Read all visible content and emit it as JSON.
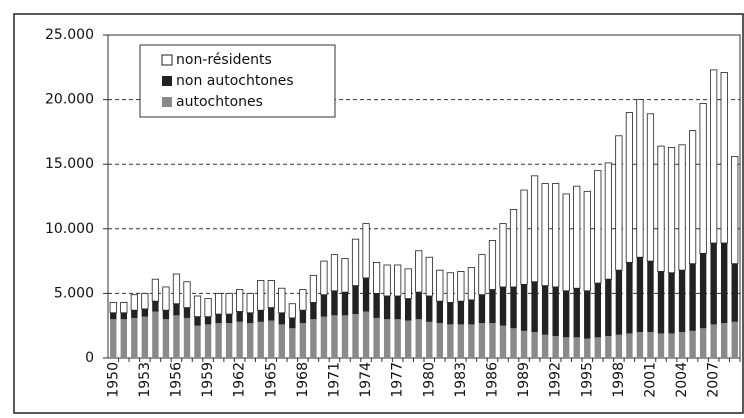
{
  "chart_data": {
    "type": "stacked_bar",
    "categories": [
      "1950",
      null,
      null,
      "1953",
      null,
      null,
      "1956",
      null,
      null,
      "1959",
      null,
      null,
      "1962",
      null,
      null,
      "1965",
      null,
      null,
      "1968",
      null,
      null,
      "1971",
      null,
      null,
      "1974",
      null,
      null,
      "1977",
      null,
      null,
      "1980",
      null,
      null,
      "1983",
      null,
      null,
      "1986",
      null,
      null,
      "1989",
      null,
      null,
      "1992",
      null,
      null,
      "1995",
      null,
      null,
      "1998",
      null,
      null,
      "2001",
      null,
      null,
      "2004",
      null,
      null,
      "2007",
      null,
      null
    ],
    "series": [
      {
        "name": "non-résidents",
        "color": "#ffffff",
        "values": [
          800,
          800,
          1200,
          1200,
          1700,
          1800,
          2300,
          2000,
          1600,
          1400,
          1600,
          1600,
          1700,
          1500,
          2300,
          2100,
          1900,
          1100,
          1600,
          2100,
          2600,
          2800,
          2600,
          3600,
          4200,
          2400,
          2400,
          2400,
          2300,
          3200,
          3000,
          2400,
          2300,
          2300,
          2500,
          3100,
          3800,
          4900,
          6000,
          7300,
          8200,
          7900,
          8000,
          7500,
          7900,
          7700,
          8700,
          9000,
          10400,
          11600,
          12200,
          11400,
          9700,
          9700,
          9700,
          10300,
          11600,
          13400,
          13200,
          8300
        ]
      },
      {
        "name": "non autochtones",
        "color": "#222222",
        "values": [
          500,
          500,
          600,
          600,
          800,
          700,
          900,
          800,
          700,
          600,
          700,
          700,
          800,
          800,
          900,
          1000,
          900,
          800,
          1000,
          1300,
          1700,
          1900,
          1800,
          2200,
          2600,
          1900,
          1800,
          1800,
          1700,
          2100,
          2000,
          1700,
          1700,
          1800,
          1900,
          2200,
          2600,
          3000,
          3200,
          3600,
          3900,
          3800,
          3800,
          3600,
          3800,
          3700,
          4200,
          4400,
          5000,
          5500,
          5800,
          5500,
          4800,
          4700,
          4800,
          5200,
          5800,
          6300,
          6200,
          4500
        ]
      },
      {
        "name": "autochtones",
        "color": "#8a8a8a",
        "values": [
          3000,
          3000,
          3100,
          3200,
          3600,
          3000,
          3300,
          3100,
          2500,
          2600,
          2700,
          2700,
          2800,
          2700,
          2800,
          2900,
          2600,
          2300,
          2700,
          3000,
          3200,
          3300,
          3300,
          3400,
          3600,
          3100,
          3000,
          3000,
          2900,
          3000,
          2800,
          2700,
          2600,
          2600,
          2600,
          2700,
          2700,
          2500,
          2300,
          2100,
          2000,
          1800,
          1700,
          1600,
          1600,
          1500,
          1600,
          1700,
          1800,
          1900,
          2000,
          2000,
          1900,
          1900,
          2000,
          2100,
          2300,
          2600,
          2700,
          2800
        ]
      }
    ],
    "ylim": [
      0,
      25000
    ],
    "yticks": [
      0,
      {
        "value": 5000,
        "label": "5.000"
      },
      {
        "value": 10000,
        "label": "10.000"
      },
      {
        "value": 15000,
        "label": "15.000"
      },
      {
        "value": 20000,
        "label": "20.000"
      },
      {
        "value": 25000,
        "label": "25.000"
      }
    ],
    "grid": true,
    "legend": "top-left"
  }
}
